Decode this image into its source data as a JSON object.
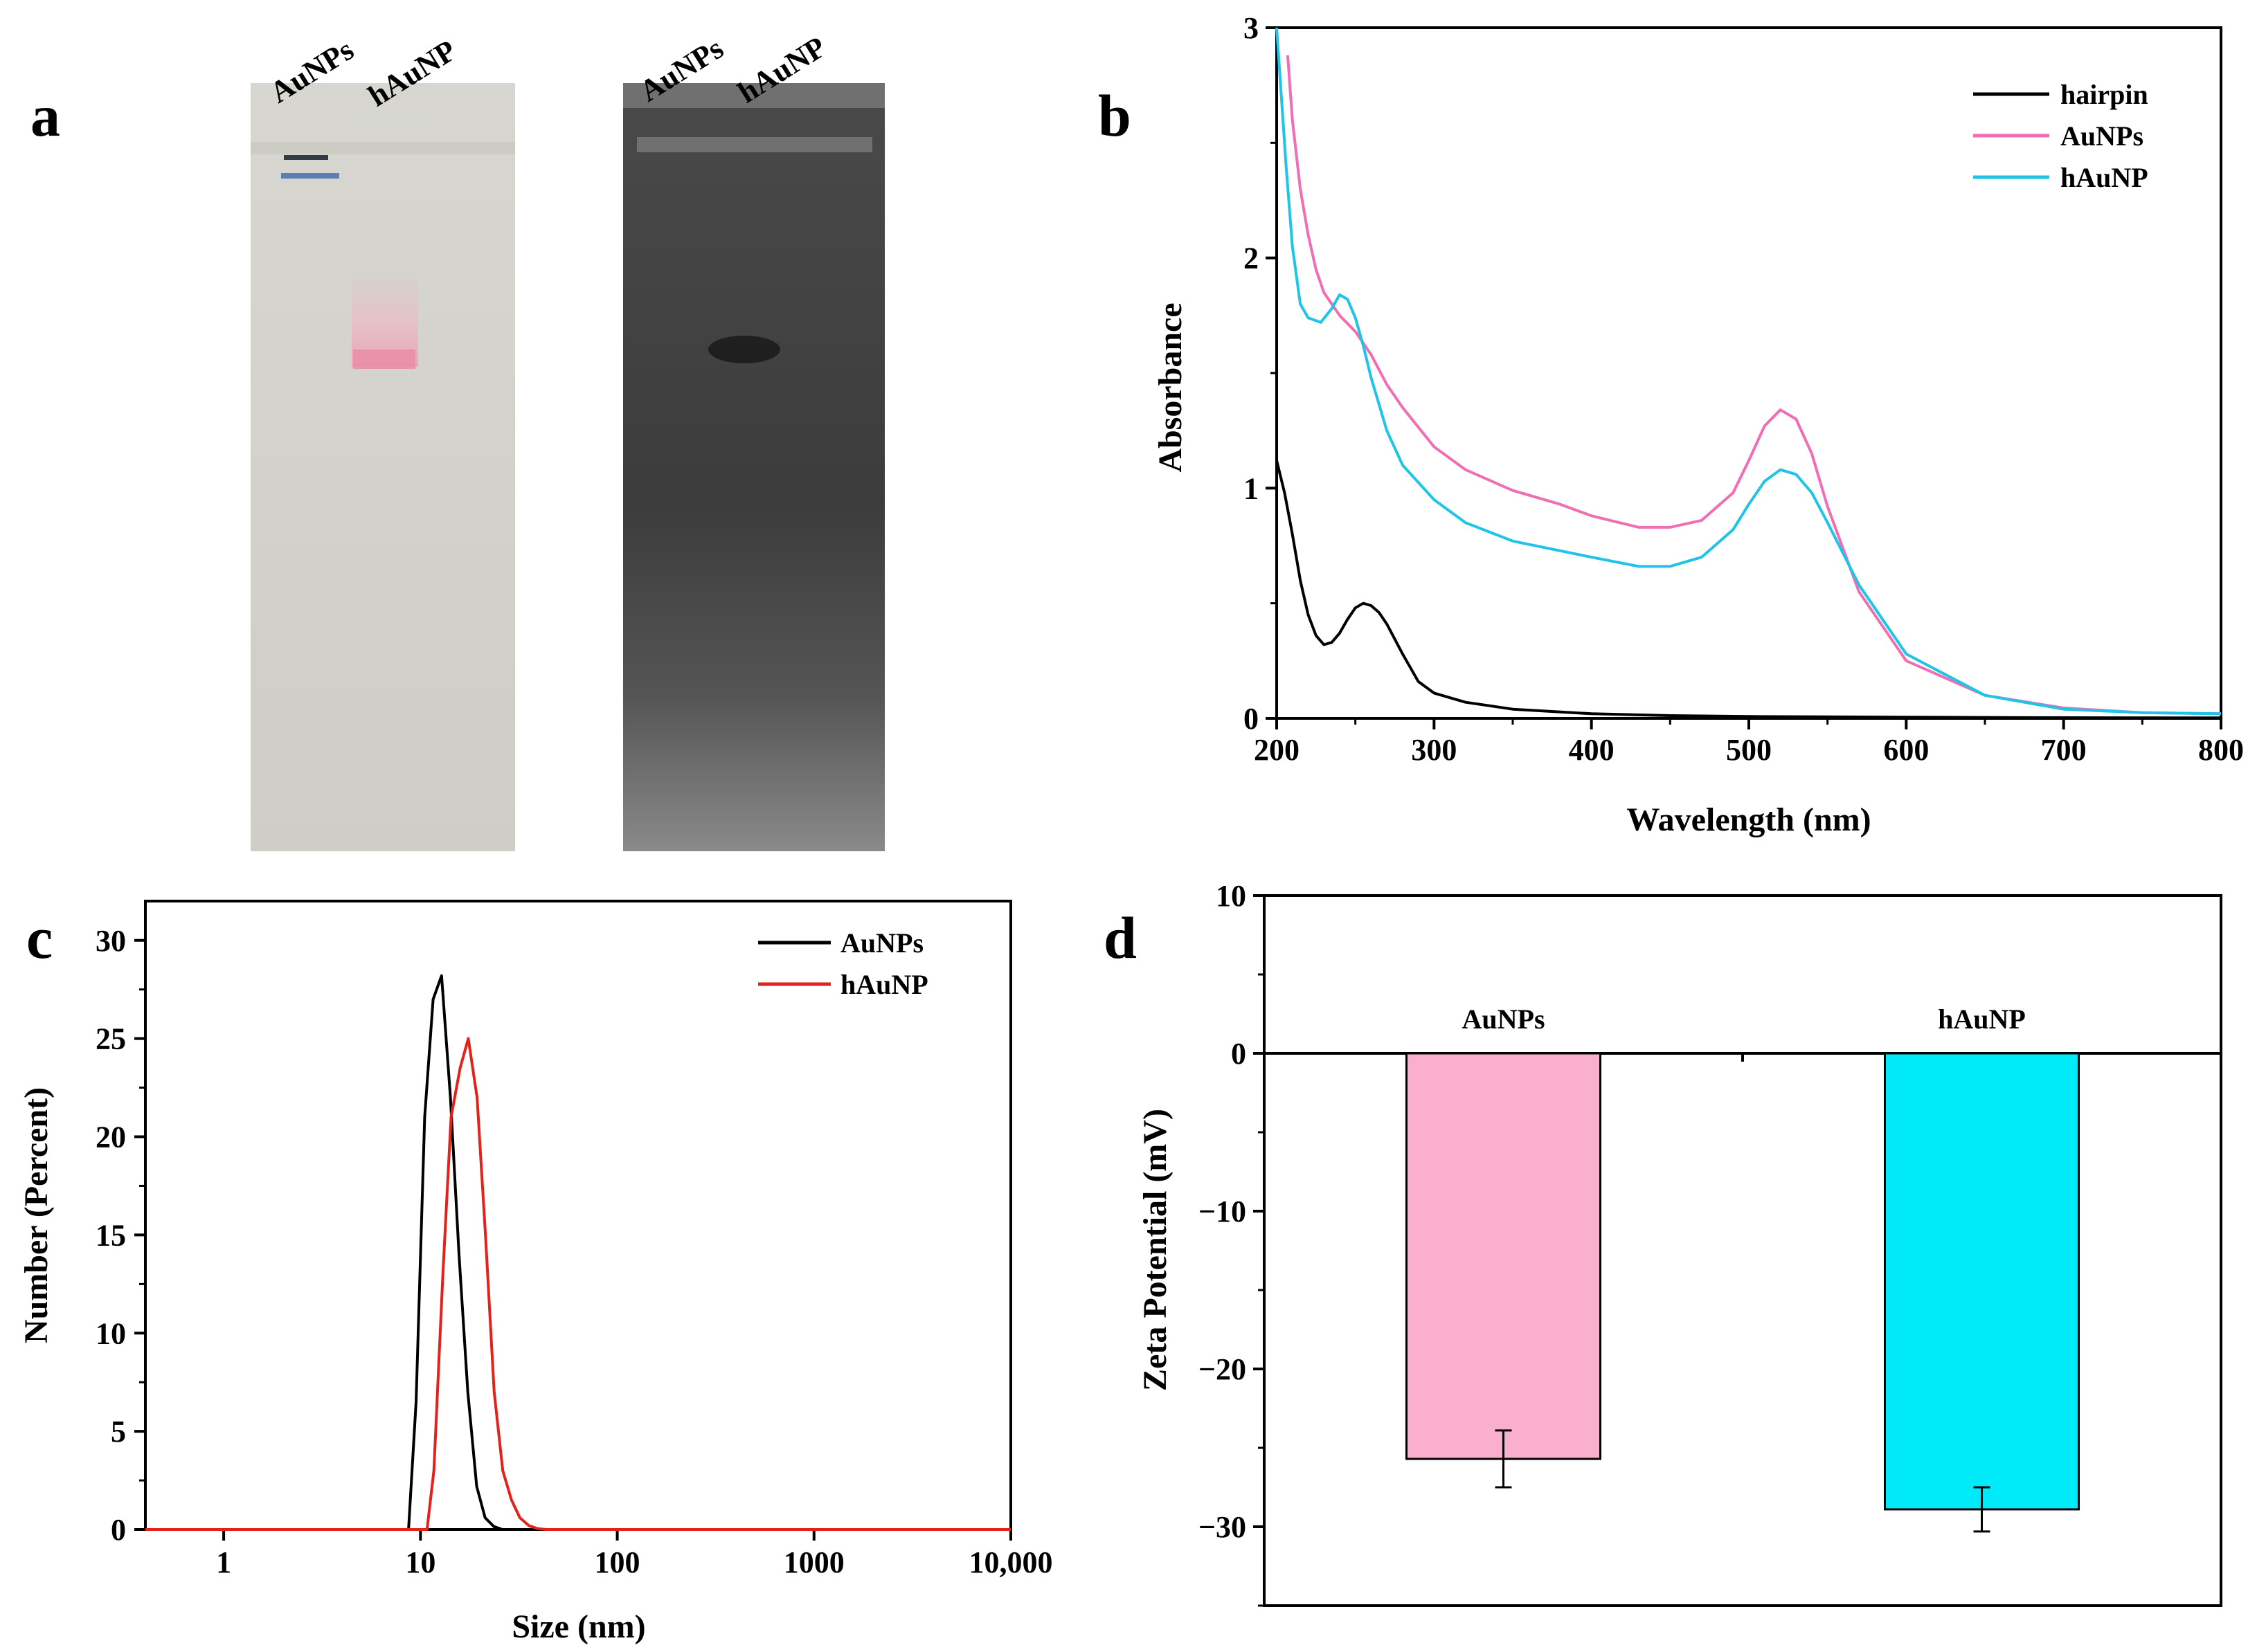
{
  "panels": {
    "a": {
      "letter": "a",
      "gel1_lanes": [
        "AuNPs",
        "hAuNP"
      ],
      "gel2_lanes": [
        "AuNPs",
        "hAuNP"
      ]
    },
    "b": {
      "letter": "b"
    },
    "c": {
      "letter": "c"
    },
    "d": {
      "letter": "d"
    }
  },
  "chart_data": [
    {
      "id": "b",
      "type": "line",
      "title": "",
      "xlabel": "Wavelength (nm)",
      "ylabel": "Absorbance",
      "xlim": [
        200,
        800
      ],
      "ylim": [
        0,
        3
      ],
      "xticks": [
        200,
        300,
        400,
        500,
        600,
        700,
        800
      ],
      "yticks": [
        0,
        1,
        2,
        3
      ],
      "xtick_labels": [
        "200",
        "300",
        "400",
        "500",
        "600",
        "700",
        "800"
      ],
      "ytick_labels": [
        "0",
        "1",
        "2",
        "3"
      ],
      "legend_position": "top-right",
      "series": [
        {
          "name": "hairpin",
          "color": "#000000",
          "x": [
            200,
            205,
            210,
            215,
            220,
            225,
            230,
            235,
            240,
            245,
            250,
            255,
            260,
            265,
            270,
            280,
            290,
            300,
            320,
            350,
            400,
            450,
            500,
            600,
            700,
            800
          ],
          "y": [
            1.12,
            0.98,
            0.8,
            0.6,
            0.45,
            0.36,
            0.32,
            0.33,
            0.37,
            0.43,
            0.48,
            0.5,
            0.49,
            0.46,
            0.41,
            0.28,
            0.16,
            0.11,
            0.07,
            0.04,
            0.02,
            0.012,
            0.008,
            0.005,
            0.003,
            0.002
          ]
        },
        {
          "name": "AuNPs",
          "color": "#f06eb4",
          "x": [
            207,
            210,
            215,
            220,
            225,
            230,
            240,
            250,
            260,
            270,
            280,
            300,
            320,
            350,
            380,
            400,
            430,
            450,
            470,
            490,
            500,
            510,
            520,
            530,
            540,
            550,
            570,
            600,
            650,
            700,
            750,
            800
          ],
          "y": [
            2.88,
            2.6,
            2.3,
            2.1,
            1.95,
            1.85,
            1.75,
            1.68,
            1.58,
            1.45,
            1.35,
            1.18,
            1.08,
            0.99,
            0.93,
            0.88,
            0.83,
            0.83,
            0.86,
            0.98,
            1.12,
            1.27,
            1.34,
            1.3,
            1.15,
            0.92,
            0.55,
            0.25,
            0.1,
            0.045,
            0.025,
            0.02
          ]
        },
        {
          "name": "hAuNP",
          "color": "#1fc4e8",
          "x": [
            200,
            203,
            206,
            210,
            215,
            220,
            228,
            235,
            240,
            245,
            250,
            255,
            260,
            270,
            280,
            300,
            320,
            350,
            400,
            430,
            450,
            470,
            490,
            500,
            510,
            520,
            530,
            540,
            550,
            570,
            600,
            650,
            700,
            750,
            800
          ],
          "y": [
            3.0,
            2.7,
            2.4,
            2.05,
            1.8,
            1.74,
            1.72,
            1.78,
            1.84,
            1.82,
            1.74,
            1.62,
            1.48,
            1.25,
            1.1,
            0.95,
            0.85,
            0.77,
            0.7,
            0.66,
            0.66,
            0.7,
            0.82,
            0.93,
            1.03,
            1.08,
            1.06,
            0.98,
            0.85,
            0.58,
            0.28,
            0.1,
            0.04,
            0.025,
            0.02
          ]
        }
      ]
    },
    {
      "id": "c",
      "type": "line",
      "title": "",
      "xlabel": "Size (nm)",
      "ylabel": "Number (Percent)",
      "xscale": "log",
      "xlim": [
        0.4,
        10000
      ],
      "ylim": [
        0,
        32
      ],
      "xticks": [
        1,
        10,
        100,
        1000,
        10000
      ],
      "xtick_labels": [
        "1",
        "10",
        "100",
        "1000",
        "10,000"
      ],
      "yticks": [
        0,
        5,
        10,
        15,
        20,
        25,
        30
      ],
      "ytick_labels": [
        "0",
        "5",
        "10",
        "15",
        "20",
        "25",
        "30"
      ],
      "legend_position": "top-right",
      "series": [
        {
          "name": "AuNPs",
          "color": "#000000",
          "x": [
            0.4,
            8.7,
            9.5,
            10.5,
            11.6,
            12.8,
            14.2,
            15.7,
            17.4,
            19.3,
            21.3,
            23.6,
            26.1,
            28.9,
            32,
            36,
            10000
          ],
          "y": [
            0,
            0,
            6.5,
            21,
            27,
            28.2,
            22,
            14,
            7,
            2.2,
            0.6,
            0.15,
            0,
            0,
            0,
            0,
            0
          ]
        },
        {
          "name": "hAuNP",
          "color": "#e3221b",
          "x": [
            0.4,
            10.8,
            11.7,
            13,
            14.3,
            15.9,
            17.5,
            19.4,
            21.4,
            23.7,
            26.2,
            29,
            32,
            35.5,
            39.2,
            43.5,
            48,
            53,
            60,
            10000
          ],
          "y": [
            0,
            0,
            3,
            13,
            21,
            23.5,
            25,
            22,
            15,
            7,
            3,
            1.5,
            0.6,
            0.2,
            0.05,
            0,
            0,
            0,
            0,
            0
          ]
        }
      ]
    },
    {
      "id": "d",
      "type": "bar",
      "title": "",
      "xlabel": "",
      "ylabel": "Zeta Potential (mV)",
      "ylim": [
        -35,
        10
      ],
      "yticks": [
        10,
        0,
        -10,
        -20,
        -30
      ],
      "ytick_labels": [
        "10",
        "0",
        "−10",
        "−20",
        "−30"
      ],
      "categories": [
        "AuNPs",
        "hAuNP"
      ],
      "values": [
        -25.7,
        -28.9
      ],
      "errors": [
        1.8,
        1.4
      ],
      "colors": [
        "#fbafd0",
        "#00eafa"
      ]
    }
  ]
}
